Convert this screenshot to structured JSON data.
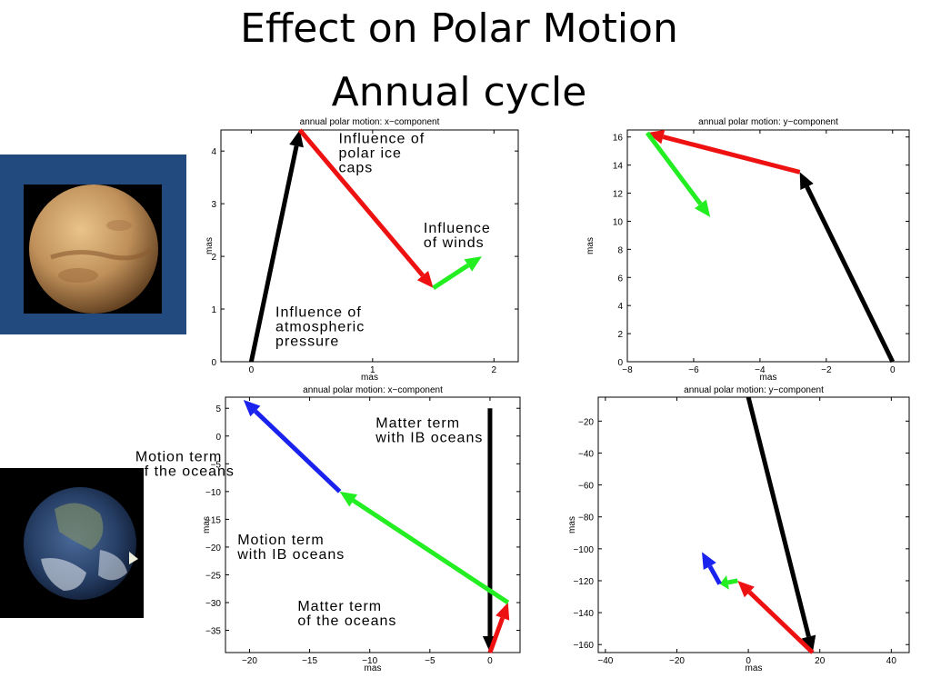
{
  "slide": {
    "title_line1": "Effect on Polar Motion",
    "title_line2": "Annual cycle"
  },
  "colors": {
    "black": "#000000",
    "red": "#ee1111",
    "green": "#22ee22",
    "blue": "#1a22ee",
    "mars_frame": "#234a7f"
  },
  "images": {
    "mars": "mars-planet-photo",
    "earth": "earth-globe-photo"
  },
  "chart_data": [
    {
      "type": "vector",
      "title": "annual polar motion: x−component",
      "xlabel": "mas",
      "ylabel": "mas",
      "xlim": [
        -0.25,
        2.2
      ],
      "ylim": [
        0,
        4.4
      ],
      "xticks": [
        0,
        1,
        2
      ],
      "yticks": [
        0,
        1,
        2,
        3,
        4
      ],
      "arrows": [
        {
          "name": "atmospheric pressure",
          "color": "black",
          "from": [
            0,
            0
          ],
          "to": [
            0.4,
            4.4
          ]
        },
        {
          "name": "polar ice caps",
          "color": "red",
          "from": [
            0.4,
            4.4
          ],
          "to": [
            1.5,
            1.4
          ]
        },
        {
          "name": "winds",
          "color": "green",
          "from": [
            1.5,
            1.4
          ],
          "to": [
            1.9,
            2.0
          ]
        }
      ],
      "annotations": [
        {
          "lines": [
            "Influence of",
            "polar ice",
            "caps"
          ],
          "x": 0.72,
          "y": 4.15
        },
        {
          "lines": [
            "Influence",
            "of winds"
          ],
          "x": 1.42,
          "y": 2.45
        },
        {
          "lines": [
            "Influence of",
            "atmospheric",
            "pressure"
          ],
          "x": 0.2,
          "y": 0.85
        }
      ]
    },
    {
      "type": "vector",
      "title": "annual polar motion: y−component",
      "xlabel": "mas",
      "ylabel": "mas",
      "xlim": [
        -8,
        0.5
      ],
      "ylim": [
        0,
        16.5
      ],
      "xticks": [
        -8,
        -6,
        -4,
        -2,
        0
      ],
      "yticks": [
        0,
        2,
        4,
        6,
        8,
        10,
        12,
        14,
        16
      ],
      "arrows": [
        {
          "name": "atmospheric pressure",
          "color": "black",
          "from": [
            0,
            0
          ],
          "to": [
            -2.8,
            13.5
          ]
        },
        {
          "name": "polar ice caps",
          "color": "red",
          "from": [
            -2.8,
            13.5
          ],
          "to": [
            -7.4,
            16.3
          ]
        },
        {
          "name": "winds",
          "color": "green",
          "from": [
            -7.4,
            16.3
          ],
          "to": [
            -5.5,
            10.3
          ]
        }
      ],
      "annotations": []
    },
    {
      "type": "vector",
      "title": "annual polar motion: x−component",
      "xlabel": "mas",
      "ylabel": "mas",
      "xlim": [
        -22,
        2.5
      ],
      "ylim": [
        -39,
        7
      ],
      "xticks": [
        -20,
        -15,
        -10,
        -5,
        0
      ],
      "yticks": [
        5,
        0,
        -5,
        -10,
        -15,
        -20,
        -25,
        -30,
        -35
      ],
      "arrows": [
        {
          "name": "Matter term with IB oceans",
          "color": "black",
          "from": [
            0,
            5
          ],
          "to": [
            0,
            -39
          ]
        },
        {
          "name": "Matter term of the oceans",
          "color": "red",
          "from": [
            0,
            -39
          ],
          "to": [
            1.5,
            -30
          ]
        },
        {
          "name": "Motion term with IB oceans",
          "color": "green",
          "from": [
            1.5,
            -30
          ],
          "to": [
            -12.5,
            -10
          ]
        },
        {
          "name": "Motion term of the oceans",
          "color": "blue",
          "from": [
            -12.5,
            -10
          ],
          "to": [
            -20.5,
            6.5
          ]
        }
      ],
      "annotations": [
        {
          "lines": [
            "Matter term",
            "with IB oceans"
          ],
          "x": -9.5,
          "y": 1.5
        },
        {
          "lines": [
            "Motion term",
            "of the oceans"
          ],
          "x": -29.5,
          "y": -4.5
        },
        {
          "lines": [
            "Motion term",
            "with IB oceans"
          ],
          "x": -21,
          "y": -19.5
        },
        {
          "lines": [
            "Matter term",
            "of the oceans"
          ],
          "x": -16,
          "y": -31.5
        }
      ]
    },
    {
      "type": "vector",
      "title": "annual polar motion: y−component",
      "xlabel": "mas",
      "ylabel": "mas",
      "xlim": [
        -42,
        45
      ],
      "ylim": [
        -165,
        -5
      ],
      "xticks": [
        -40,
        -20,
        0,
        20,
        40
      ],
      "yticks": [
        -20,
        -40,
        -60,
        -80,
        -100,
        -120,
        -140,
        -160
      ],
      "arrows": [
        {
          "name": "Matter term with IB oceans",
          "color": "black",
          "from": [
            0,
            -5
          ],
          "to": [
            18,
            -165
          ]
        },
        {
          "name": "Matter term of the oceans",
          "color": "red",
          "from": [
            18,
            -165
          ],
          "to": [
            -3,
            -120
          ]
        },
        {
          "name": "Motion term with IB oceans",
          "color": "green",
          "from": [
            -3,
            -120
          ],
          "to": [
            -8,
            -122
          ]
        },
        {
          "name": "Motion term of the oceans",
          "color": "blue",
          "from": [
            -8,
            -122
          ],
          "to": [
            -13,
            -102
          ]
        }
      ],
      "annotations": []
    }
  ]
}
